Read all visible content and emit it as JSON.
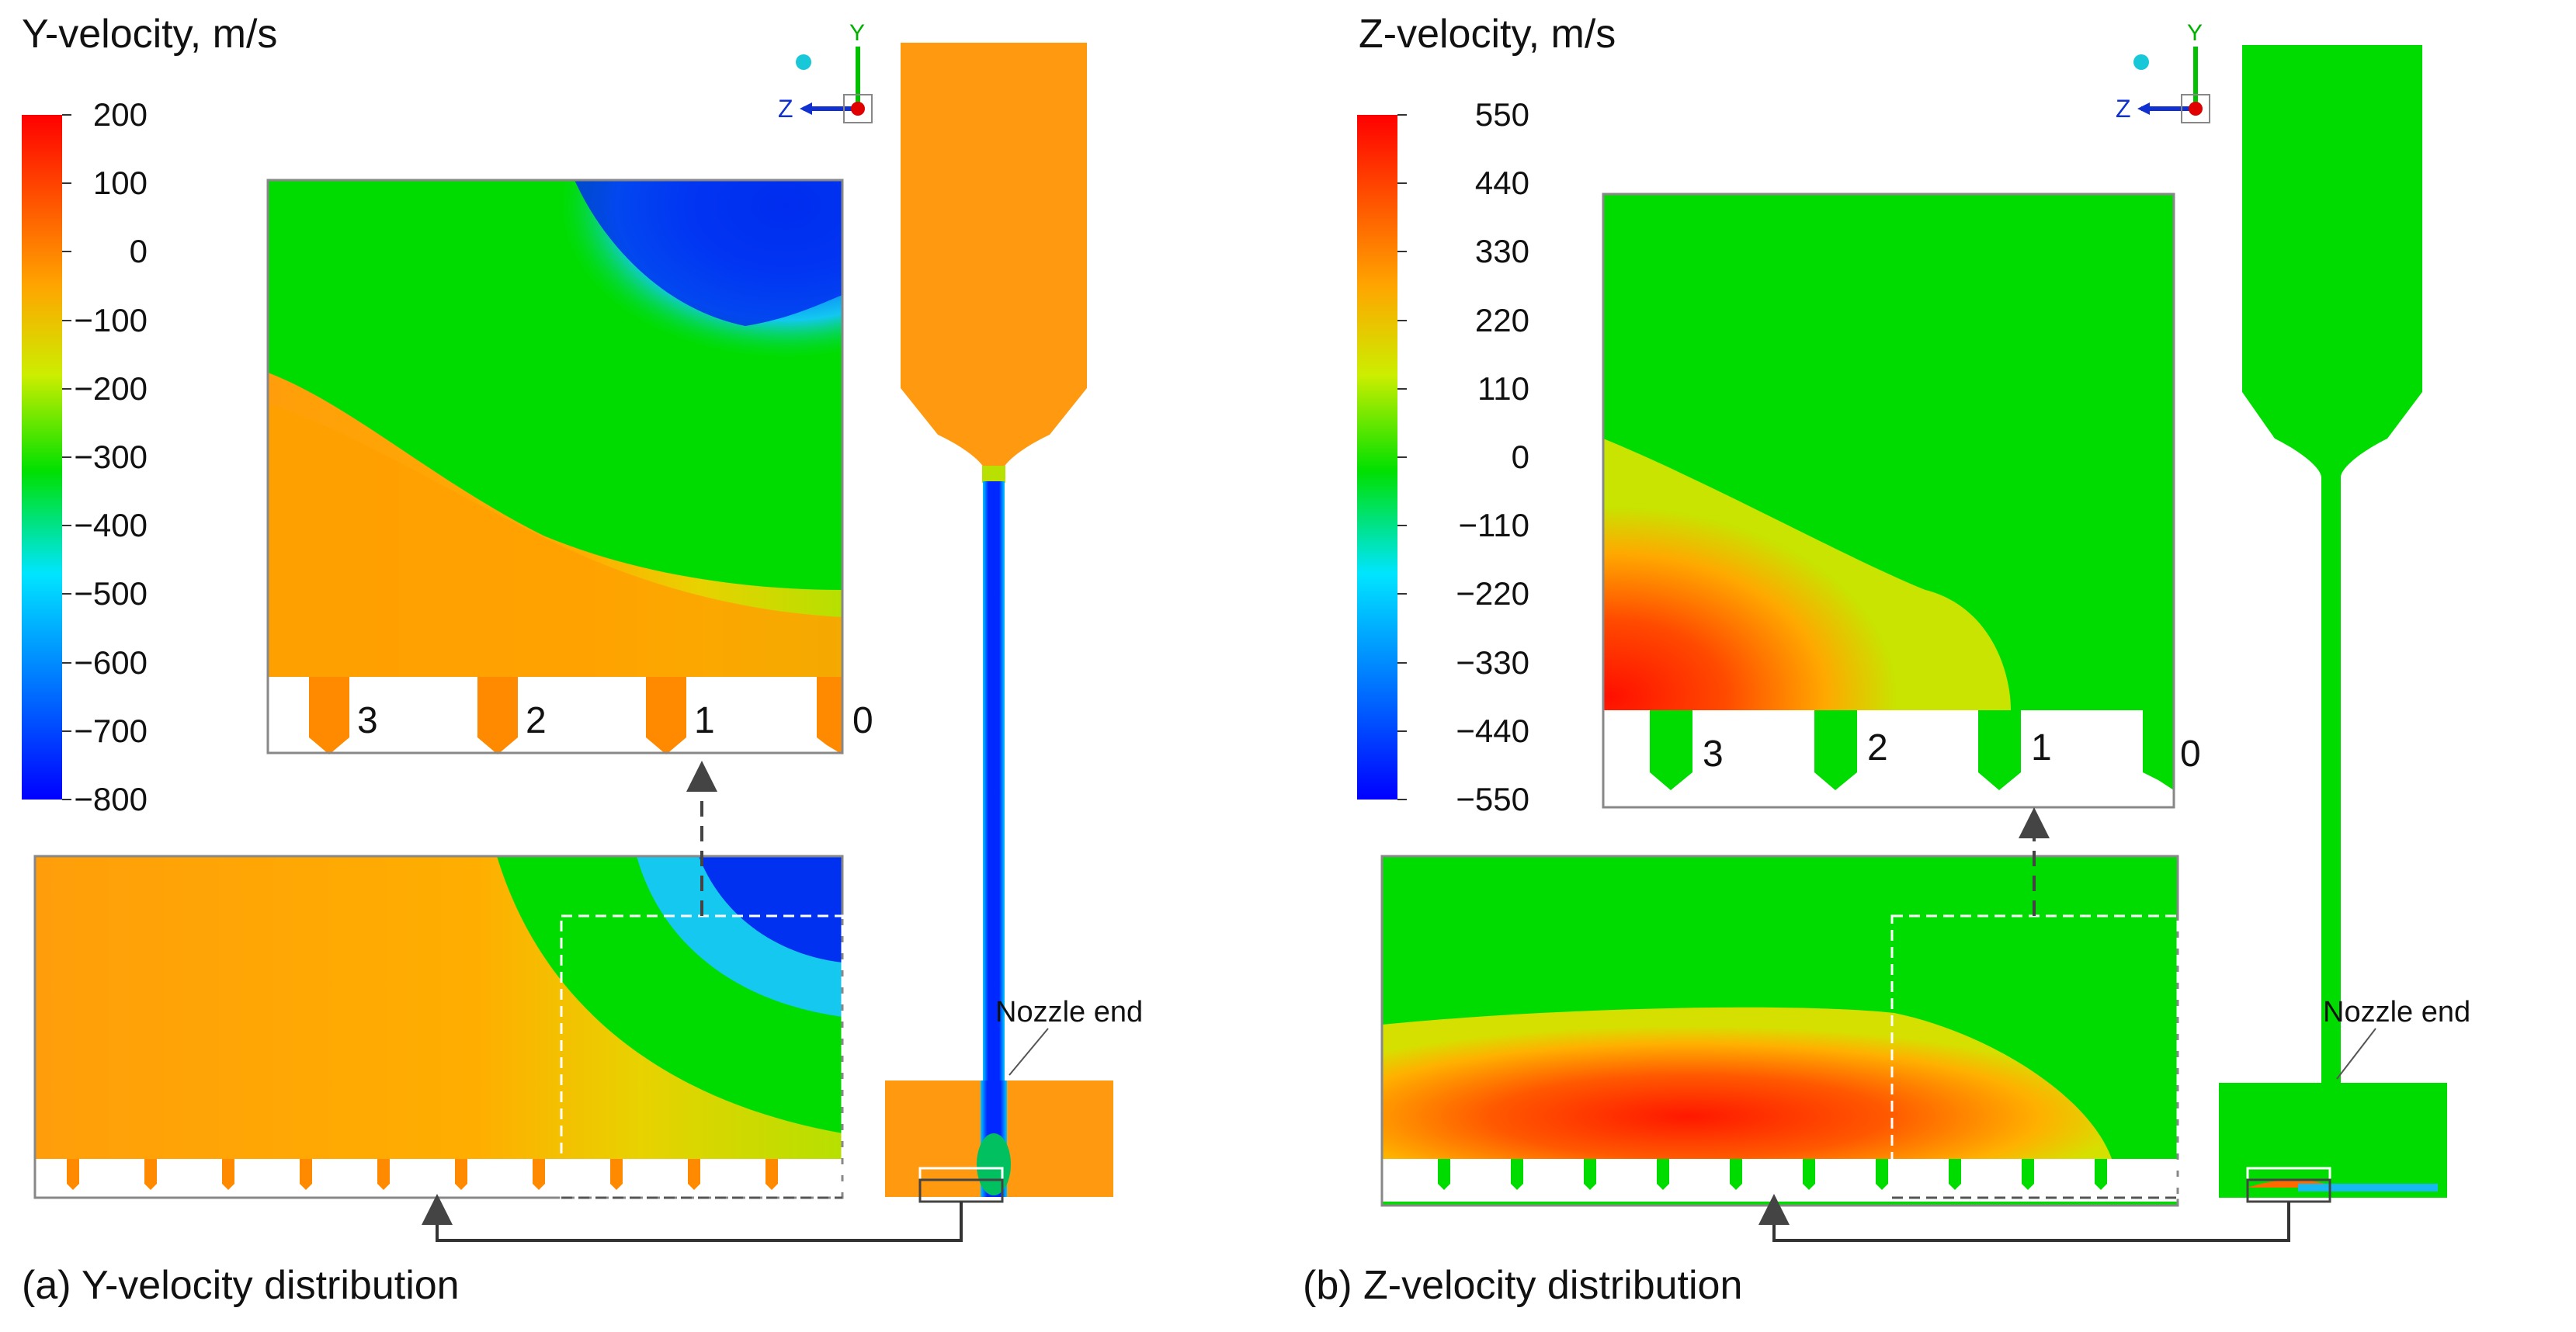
{
  "panels": [
    {
      "id": "a",
      "title": "Y-velocity, m/s",
      "caption": "(a) Y-velocity distribution",
      "colorbar_ticks": [
        "200",
        "100",
        "0",
        "−100",
        "−200",
        "−300",
        "−400",
        "−500",
        "−600",
        "−700",
        "−800"
      ],
      "slot_labels": [
        "3",
        "2",
        "1",
        "0"
      ],
      "nozzle_label": "Nozzle end",
      "axis_z": "Z",
      "axis_y": "Y"
    },
    {
      "id": "b",
      "title": "Z-velocity, m/s",
      "caption": "(b) Z-velocity distribution",
      "colorbar_ticks": [
        "550",
        "440",
        "330",
        "220",
        "110",
        "0",
        "−110",
        "−220",
        "−330",
        "−440",
        "−550"
      ],
      "slot_labels": [
        "3",
        "2",
        "1",
        "0"
      ],
      "nozzle_label": "Nozzle end",
      "axis_z": "Z",
      "axis_y": "Y"
    }
  ],
  "colors": {
    "rainbow": [
      "#0000ff",
      "#0077ff",
      "#00e5ff",
      "#00e000",
      "#ccee00",
      "#ffa500",
      "#ff0000"
    ],
    "orange": "#ff9a10",
    "green": "#00de00",
    "blue": "#0022ee",
    "frame": "#808080"
  }
}
